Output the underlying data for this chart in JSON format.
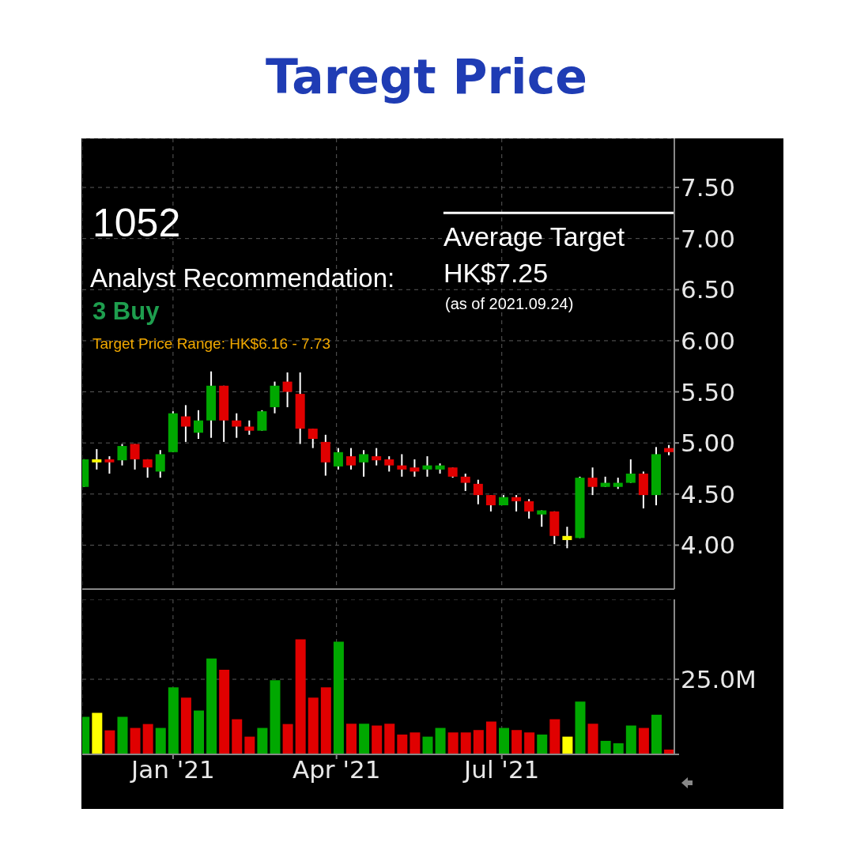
{
  "chart_data": [
    {
      "type": "candlestick",
      "title": "Taregt Price",
      "x": [
        "2020-11-13",
        "2020-11-20",
        "2020-11-27",
        "2020-12-04",
        "2020-12-11",
        "2020-12-18",
        "2020-12-25",
        "2021-01-01",
        "2021-01-08",
        "2021-01-15",
        "2021-01-22",
        "2021-01-29",
        "2021-02-05",
        "2021-02-12",
        "2021-02-19",
        "2021-02-26",
        "2021-03-05",
        "2021-03-12",
        "2021-03-19",
        "2021-03-26",
        "2021-04-02",
        "2021-04-09",
        "2021-04-16",
        "2021-04-23",
        "2021-04-30",
        "2021-05-07",
        "2021-05-14",
        "2021-05-21",
        "2021-05-28",
        "2021-06-04",
        "2021-06-11",
        "2021-06-18",
        "2021-06-25",
        "2021-07-02",
        "2021-07-09",
        "2021-07-16",
        "2021-07-23",
        "2021-07-30",
        "2021-08-06",
        "2021-08-13",
        "2021-08-20",
        "2021-08-27",
        "2021-09-03",
        "2021-09-10",
        "2021-09-17",
        "2021-09-24",
        "2021-10-01"
      ],
      "ohlc": [
        [
          4.57,
          4.84,
          4.57,
          4.84
        ],
        [
          4.84,
          4.94,
          4.74,
          4.81
        ],
        [
          4.84,
          4.87,
          4.7,
          4.81
        ],
        [
          4.83,
          4.99,
          4.78,
          4.97
        ],
        [
          4.99,
          4.99,
          4.74,
          4.84
        ],
        [
          4.84,
          4.84,
          4.66,
          4.76
        ],
        [
          4.72,
          4.93,
          4.66,
          4.89
        ],
        [
          4.91,
          5.31,
          4.91,
          5.29
        ],
        [
          5.26,
          5.37,
          5.01,
          5.16
        ],
        [
          5.1,
          5.32,
          5.04,
          5.22
        ],
        [
          5.22,
          5.7,
          5.05,
          5.56
        ],
        [
          5.56,
          5.56,
          5.01,
          5.22
        ],
        [
          5.22,
          5.29,
          5.05,
          5.16
        ],
        [
          5.16,
          5.22,
          5.08,
          5.12
        ],
        [
          5.12,
          5.32,
          5.12,
          5.31
        ],
        [
          5.35,
          5.6,
          5.29,
          5.56
        ],
        [
          5.6,
          5.69,
          5.35,
          5.5
        ],
        [
          5.48,
          5.69,
          4.99,
          5.14
        ],
        [
          5.14,
          5.14,
          4.95,
          5.04
        ],
        [
          5.01,
          5.08,
          4.68,
          4.81
        ],
        [
          4.77,
          4.95,
          4.74,
          4.91
        ],
        [
          4.87,
          4.95,
          4.74,
          4.78
        ],
        [
          4.81,
          4.93,
          4.67,
          4.89
        ],
        [
          4.87,
          4.95,
          4.78,
          4.83
        ],
        [
          4.84,
          4.87,
          4.72,
          4.78
        ],
        [
          4.78,
          4.89,
          4.67,
          4.74
        ],
        [
          4.76,
          4.84,
          4.67,
          4.72
        ],
        [
          4.74,
          4.87,
          4.67,
          4.78
        ],
        [
          4.74,
          4.8,
          4.7,
          4.78
        ],
        [
          4.76,
          4.76,
          4.66,
          4.67
        ],
        [
          4.67,
          4.7,
          4.53,
          4.61
        ],
        [
          4.6,
          4.64,
          4.4,
          4.49
        ],
        [
          4.49,
          4.49,
          4.33,
          4.39
        ],
        [
          4.39,
          4.49,
          4.39,
          4.47
        ],
        [
          4.47,
          4.49,
          4.33,
          4.43
        ],
        [
          4.43,
          4.45,
          4.26,
          4.33
        ],
        [
          4.3,
          4.34,
          4.18,
          4.34
        ],
        [
          4.33,
          4.33,
          4.01,
          4.09
        ],
        [
          4.09,
          4.18,
          3.97,
          4.05
        ],
        [
          4.07,
          4.67,
          4.07,
          4.66
        ],
        [
          4.66,
          4.76,
          4.49,
          4.57
        ],
        [
          4.57,
          4.67,
          4.57,
          4.61
        ],
        [
          4.57,
          4.66,
          4.55,
          4.61
        ],
        [
          4.61,
          4.84,
          4.61,
          4.7
        ],
        [
          4.7,
          4.72,
          4.36,
          4.49
        ],
        [
          4.49,
          4.96,
          4.39,
          4.89
        ],
        [
          4.95,
          4.98,
          4.88,
          4.91
        ]
      ],
      "colors": [
        "#00a800",
        "#ffff00",
        "#e00000",
        "#00a800",
        "#e00000",
        "#e00000",
        "#00a800",
        "#00a800",
        "#e00000",
        "#00a800",
        "#00a800",
        "#e00000",
        "#e00000",
        "#e00000",
        "#00a800",
        "#00a800",
        "#e00000",
        "#e00000",
        "#e00000",
        "#e00000",
        "#00a800",
        "#e00000",
        "#00a800",
        "#e00000",
        "#e00000",
        "#e00000",
        "#e00000",
        "#00a800",
        "#00a800",
        "#e00000",
        "#e00000",
        "#e00000",
        "#e00000",
        "#00a800",
        "#e00000",
        "#e00000",
        "#00a800",
        "#e00000",
        "#ffff00",
        "#00a800",
        "#e00000",
        "#00a800",
        "#00a800",
        "#00a800",
        "#e00000",
        "#00a800",
        "#e00000"
      ],
      "xlim": [
        "2020-11-12",
        "2021-10-04"
      ],
      "xticks": [
        {
          "value": "2021-01-01",
          "label": null
        },
        {
          "value": "2021-04-01",
          "label": null
        },
        {
          "value": "2021-07-01",
          "label": null
        }
      ],
      "ylim": [
        3.57,
        7.98
      ],
      "yticks": [
        {
          "value": 4,
          "label": "4.00"
        },
        {
          "value": 4.5,
          "label": "4.50"
        },
        {
          "value": 5,
          "label": "5.00"
        },
        {
          "value": 5.5,
          "label": "5.50"
        },
        {
          "value": 6,
          "label": "6.00"
        },
        {
          "value": 6.5,
          "label": "6.50"
        },
        {
          "value": 7,
          "label": "7.00"
        },
        {
          "value": 7.5,
          "label": "7.50"
        }
      ],
      "grid": true,
      "tick_labels": "y",
      "ref_lines": [
        {
          "axis": "y",
          "value": 7.25,
          "label": "Average Target\nHK$7.25",
          "color": "#ffffff"
        }
      ],
      "annotations": [
        "1052",
        "Analyst Recommendation:",
        "3 Buy",
        "Target Price Range: HK$6.16 - 7.73",
        "(as of 2021.09.24)"
      ]
    },
    {
      "type": "bar",
      "x": [
        "2020-11-13",
        "2020-11-20",
        "2020-11-27",
        "2020-12-04",
        "2020-12-11",
        "2020-12-18",
        "2020-12-25",
        "2021-01-01",
        "2021-01-08",
        "2021-01-15",
        "2021-01-22",
        "2021-01-29",
        "2021-02-05",
        "2021-02-12",
        "2021-02-19",
        "2021-02-26",
        "2021-03-05",
        "2021-03-12",
        "2021-03-19",
        "2021-03-26",
        "2021-04-02",
        "2021-04-09",
        "2021-04-16",
        "2021-04-23",
        "2021-04-30",
        "2021-05-07",
        "2021-05-14",
        "2021-05-21",
        "2021-05-28",
        "2021-06-04",
        "2021-06-11",
        "2021-06-18",
        "2021-06-25",
        "2021-07-02",
        "2021-07-09",
        "2021-07-16",
        "2021-07-23",
        "2021-07-30",
        "2021-08-06",
        "2021-08-13",
        "2021-08-20",
        "2021-08-27",
        "2021-09-03",
        "2021-09-10",
        "2021-09-17",
        "2021-09-24",
        "2021-10-01"
      ],
      "values": [
        12.5,
        13.8,
        8.0,
        12.5,
        8.8,
        10.1,
        8.8,
        22.3,
        18.9,
        14.6,
        31.9,
        28.2,
        11.7,
        5.9,
        8.8,
        24.7,
        10.1,
        38.3,
        18.9,
        22.3,
        37.5,
        10.2,
        10.2,
        9.6,
        10.2,
        6.6,
        7.3,
        5.9,
        8.8,
        7.3,
        7.3,
        8.1,
        10.9,
        8.8,
        8.1,
        7.3,
        6.6,
        11.7,
        5.9,
        17.6,
        10.2,
        4.5,
        3.7,
        9.6,
        8.8,
        13.2,
        1.6
      ],
      "colors": [
        "#00a800",
        "#ffff00",
        "#e00000",
        "#00a800",
        "#e00000",
        "#e00000",
        "#00a800",
        "#00a800",
        "#e00000",
        "#00a800",
        "#00a800",
        "#e00000",
        "#e00000",
        "#e00000",
        "#00a800",
        "#00a800",
        "#e00000",
        "#e00000",
        "#e00000",
        "#e00000",
        "#00a800",
        "#e00000",
        "#00a800",
        "#e00000",
        "#e00000",
        "#e00000",
        "#e00000",
        "#00a800",
        "#00a800",
        "#e00000",
        "#e00000",
        "#e00000",
        "#e00000",
        "#00a800",
        "#e00000",
        "#e00000",
        "#00a800",
        "#e00000",
        "#ffff00",
        "#00a800",
        "#e00000",
        "#00a800",
        "#00a800",
        "#00a800",
        "#e00000",
        "#00a800",
        "#e00000"
      ],
      "xlim": [
        "2020-11-12",
        "2021-10-04"
      ],
      "xticks": [
        {
          "value": "2021-01-01",
          "label": "Jan '21"
        },
        {
          "value": "2021-04-01",
          "label": "Apr '21"
        },
        {
          "value": "2021-07-01",
          "label": "Jul '21"
        }
      ],
      "ylim": [
        0,
        51.6
      ],
      "yticks": [
        {
          "value": 0,
          "label": null
        },
        {
          "value": 25,
          "label": "25.0M"
        }
      ],
      "grid": true
    }
  ]
}
